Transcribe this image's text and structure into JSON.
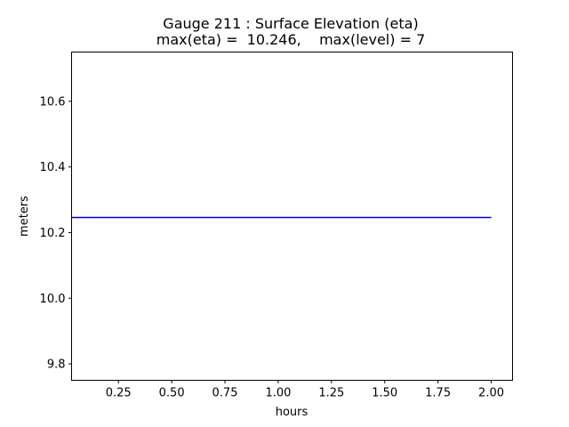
{
  "chart_data": {
    "type": "line",
    "title_line1": "Gauge 211 : Surface Elevation (eta)",
    "title_line2": "max(eta) =  10.246,    max(level) = 7",
    "xlabel": "hours",
    "ylabel": "meters",
    "xlim": [
      0.03,
      2.1
    ],
    "ylim": [
      9.75,
      10.75
    ],
    "xticks": [
      0.25,
      0.5,
      0.75,
      1.0,
      1.25,
      1.5,
      1.75,
      2.0
    ],
    "xtick_labels": [
      "0.25",
      "0.50",
      "0.75",
      "1.00",
      "1.25",
      "1.50",
      "1.75",
      "2.00"
    ],
    "yticks": [
      9.8,
      10.0,
      10.2,
      10.4,
      10.6
    ],
    "ytick_labels": [
      "9.8",
      "10.0",
      "10.2",
      "10.4",
      "10.6"
    ],
    "grid": false,
    "legend": "none",
    "series": [
      {
        "color": "#0000cc",
        "x": [
          0.03,
          2.0
        ],
        "y": [
          10.246,
          10.246
        ]
      }
    ]
  }
}
